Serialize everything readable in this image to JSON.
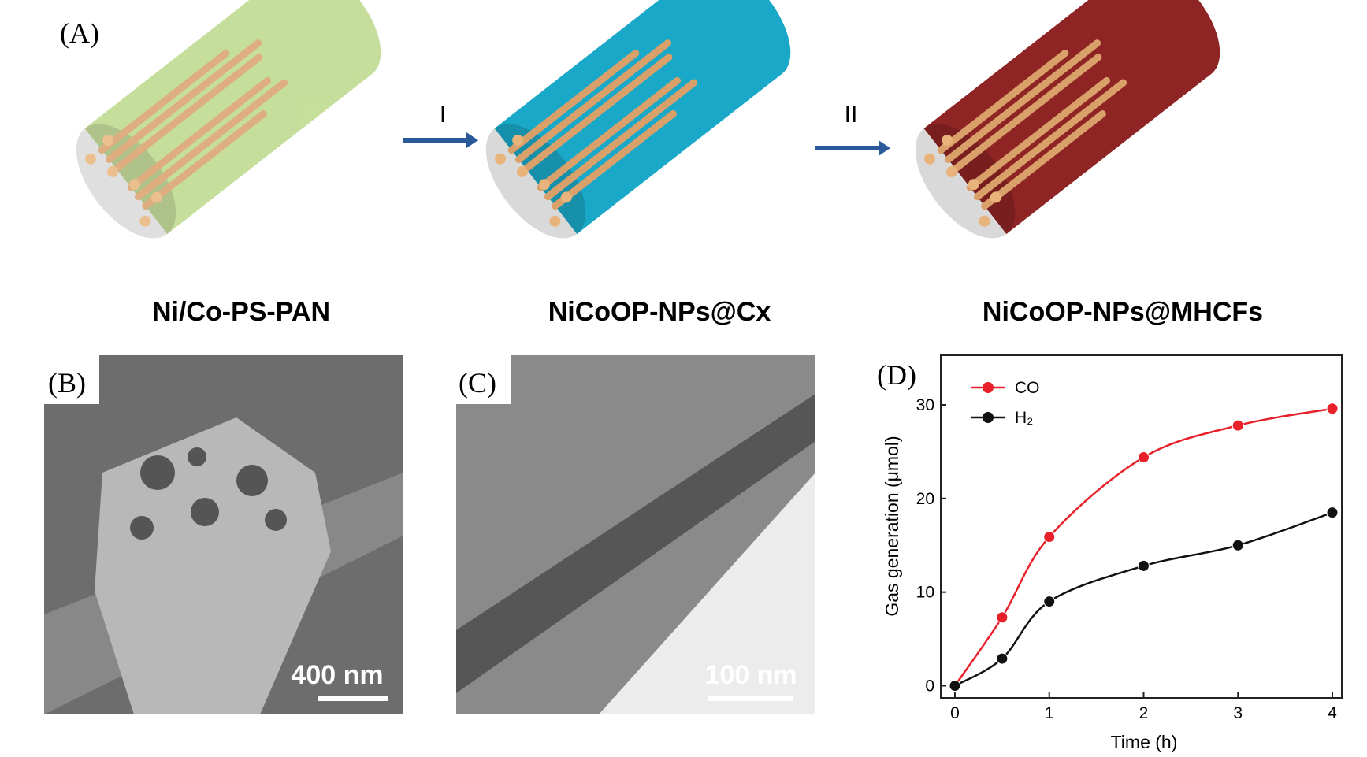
{
  "panel_a": {
    "label": "(A)",
    "steps": [
      "I",
      "II"
    ],
    "captions": [
      "Ni/Co-PS-PAN",
      "NiCoOP-NPs@Cx",
      "NiCoOP-NPs@MHCFs"
    ]
  },
  "panel_b": {
    "label": "(B)",
    "scale_bar": "400 nm"
  },
  "panel_c": {
    "label": "(C)",
    "scale_bar": "100 nm"
  },
  "panel_d": {
    "label": "(D)"
  },
  "chart_data": {
    "type": "line",
    "x": [
      0,
      0.5,
      1,
      2,
      3,
      4
    ],
    "xlabel": "Time (h)",
    "ylabel": "Gas generation (μmol)",
    "series": [
      {
        "name": "CO",
        "color": "#e8202a",
        "values": [
          0,
          7.3,
          15.9,
          24.4,
          27.8,
          29.6
        ]
      },
      {
        "name": "H₂",
        "color": "#111111",
        "values": [
          0,
          2.9,
          9.0,
          12.8,
          15.0,
          18.5
        ]
      }
    ],
    "xlim": [
      -0.15,
      4.1
    ],
    "ylim": [
      -1.3,
      35.3
    ],
    "xticks": [
      0,
      1,
      2,
      3,
      4
    ],
    "yticks": [
      0,
      10,
      20,
      30
    ]
  }
}
